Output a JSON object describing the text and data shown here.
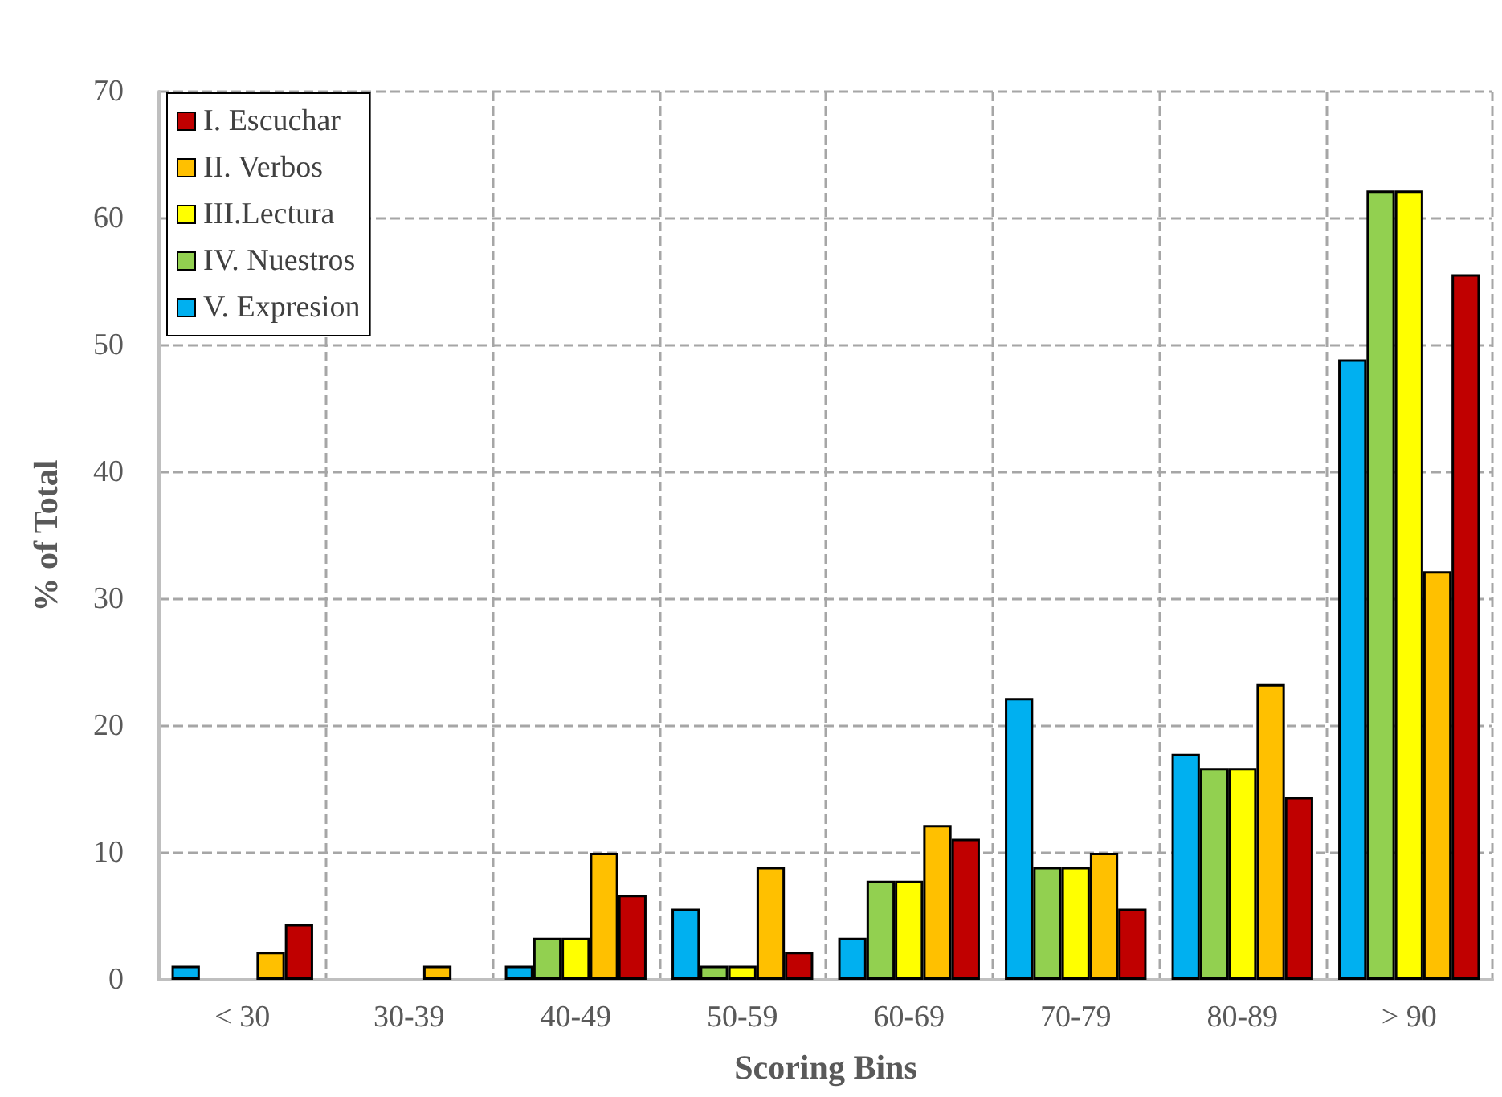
{
  "chart_data": {
    "type": "bar",
    "xlabel": "Scoring Bins",
    "ylabel": "% of Total",
    "categories": [
      "< 30",
      "30-39",
      "40-49",
      "50-59",
      "60-69",
      "70-79",
      "80-89",
      "> 90"
    ],
    "series": [
      {
        "name": "V. Expresion",
        "color": "#00b0f0",
        "values": [
          1.1,
          0,
          1.1,
          5.6,
          3.3,
          22.2,
          17.8,
          48.9
        ]
      },
      {
        "name": "IV. Nuestros",
        "color": "#92d050",
        "values": [
          0,
          0,
          3.3,
          1.1,
          7.8,
          8.9,
          16.7,
          62.2
        ]
      },
      {
        "name": "III.Lectura",
        "color": "#ffff00",
        "values": [
          0,
          0,
          3.3,
          1.1,
          7.8,
          8.9,
          16.7,
          62.2
        ]
      },
      {
        "name": "II. Verbos",
        "color": "#ffc000",
        "values": [
          2.2,
          1.1,
          10,
          8.9,
          12.2,
          10,
          23.3,
          32.2
        ]
      },
      {
        "name": "I. Escuchar",
        "color": "#c00000",
        "values": [
          4.4,
          0,
          6.7,
          2.2,
          11.1,
          5.6,
          14.4,
          55.6
        ]
      }
    ],
    "ylim": [
      0,
      70
    ],
    "yticks": [
      0,
      10,
      20,
      30,
      40,
      50,
      60,
      70
    ],
    "grid": true,
    "legend": "top left"
  }
}
